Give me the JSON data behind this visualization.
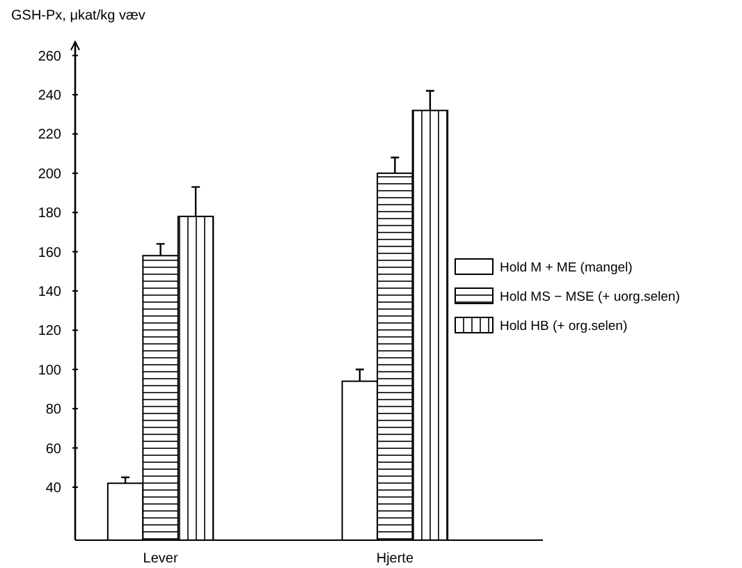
{
  "chart_data": {
    "type": "bar",
    "ylabel": "GSH-Px, μkat/kg væv",
    "categories": [
      "Lever",
      "Hjerte"
    ],
    "series": [
      {
        "name": "Hold M + ME (mangel)",
        "color": "#000000",
        "values": [
          42,
          94
        ],
        "errors": [
          [
            42,
            45
          ],
          [
            94,
            100
          ]
        ]
      },
      {
        "name": "Hold MS − MSE (+ uorg.selen)",
        "color": "#000000",
        "values": [
          158,
          200
        ],
        "errors": [
          [
            158,
            164
          ],
          [
            200,
            208
          ]
        ]
      },
      {
        "name": "Hold HB (+ org.selen)",
        "color": "#000000",
        "values": [
          178,
          232
        ],
        "errors": [
          [
            178,
            193
          ],
          [
            232,
            242
          ]
        ]
      }
    ],
    "ylim": [
      13,
      267
    ],
    "yticks": [
      40,
      60,
      80,
      100,
      120,
      140,
      160,
      180,
      200,
      220,
      240,
      260
    ],
    "legend": "right",
    "grid": false
  }
}
